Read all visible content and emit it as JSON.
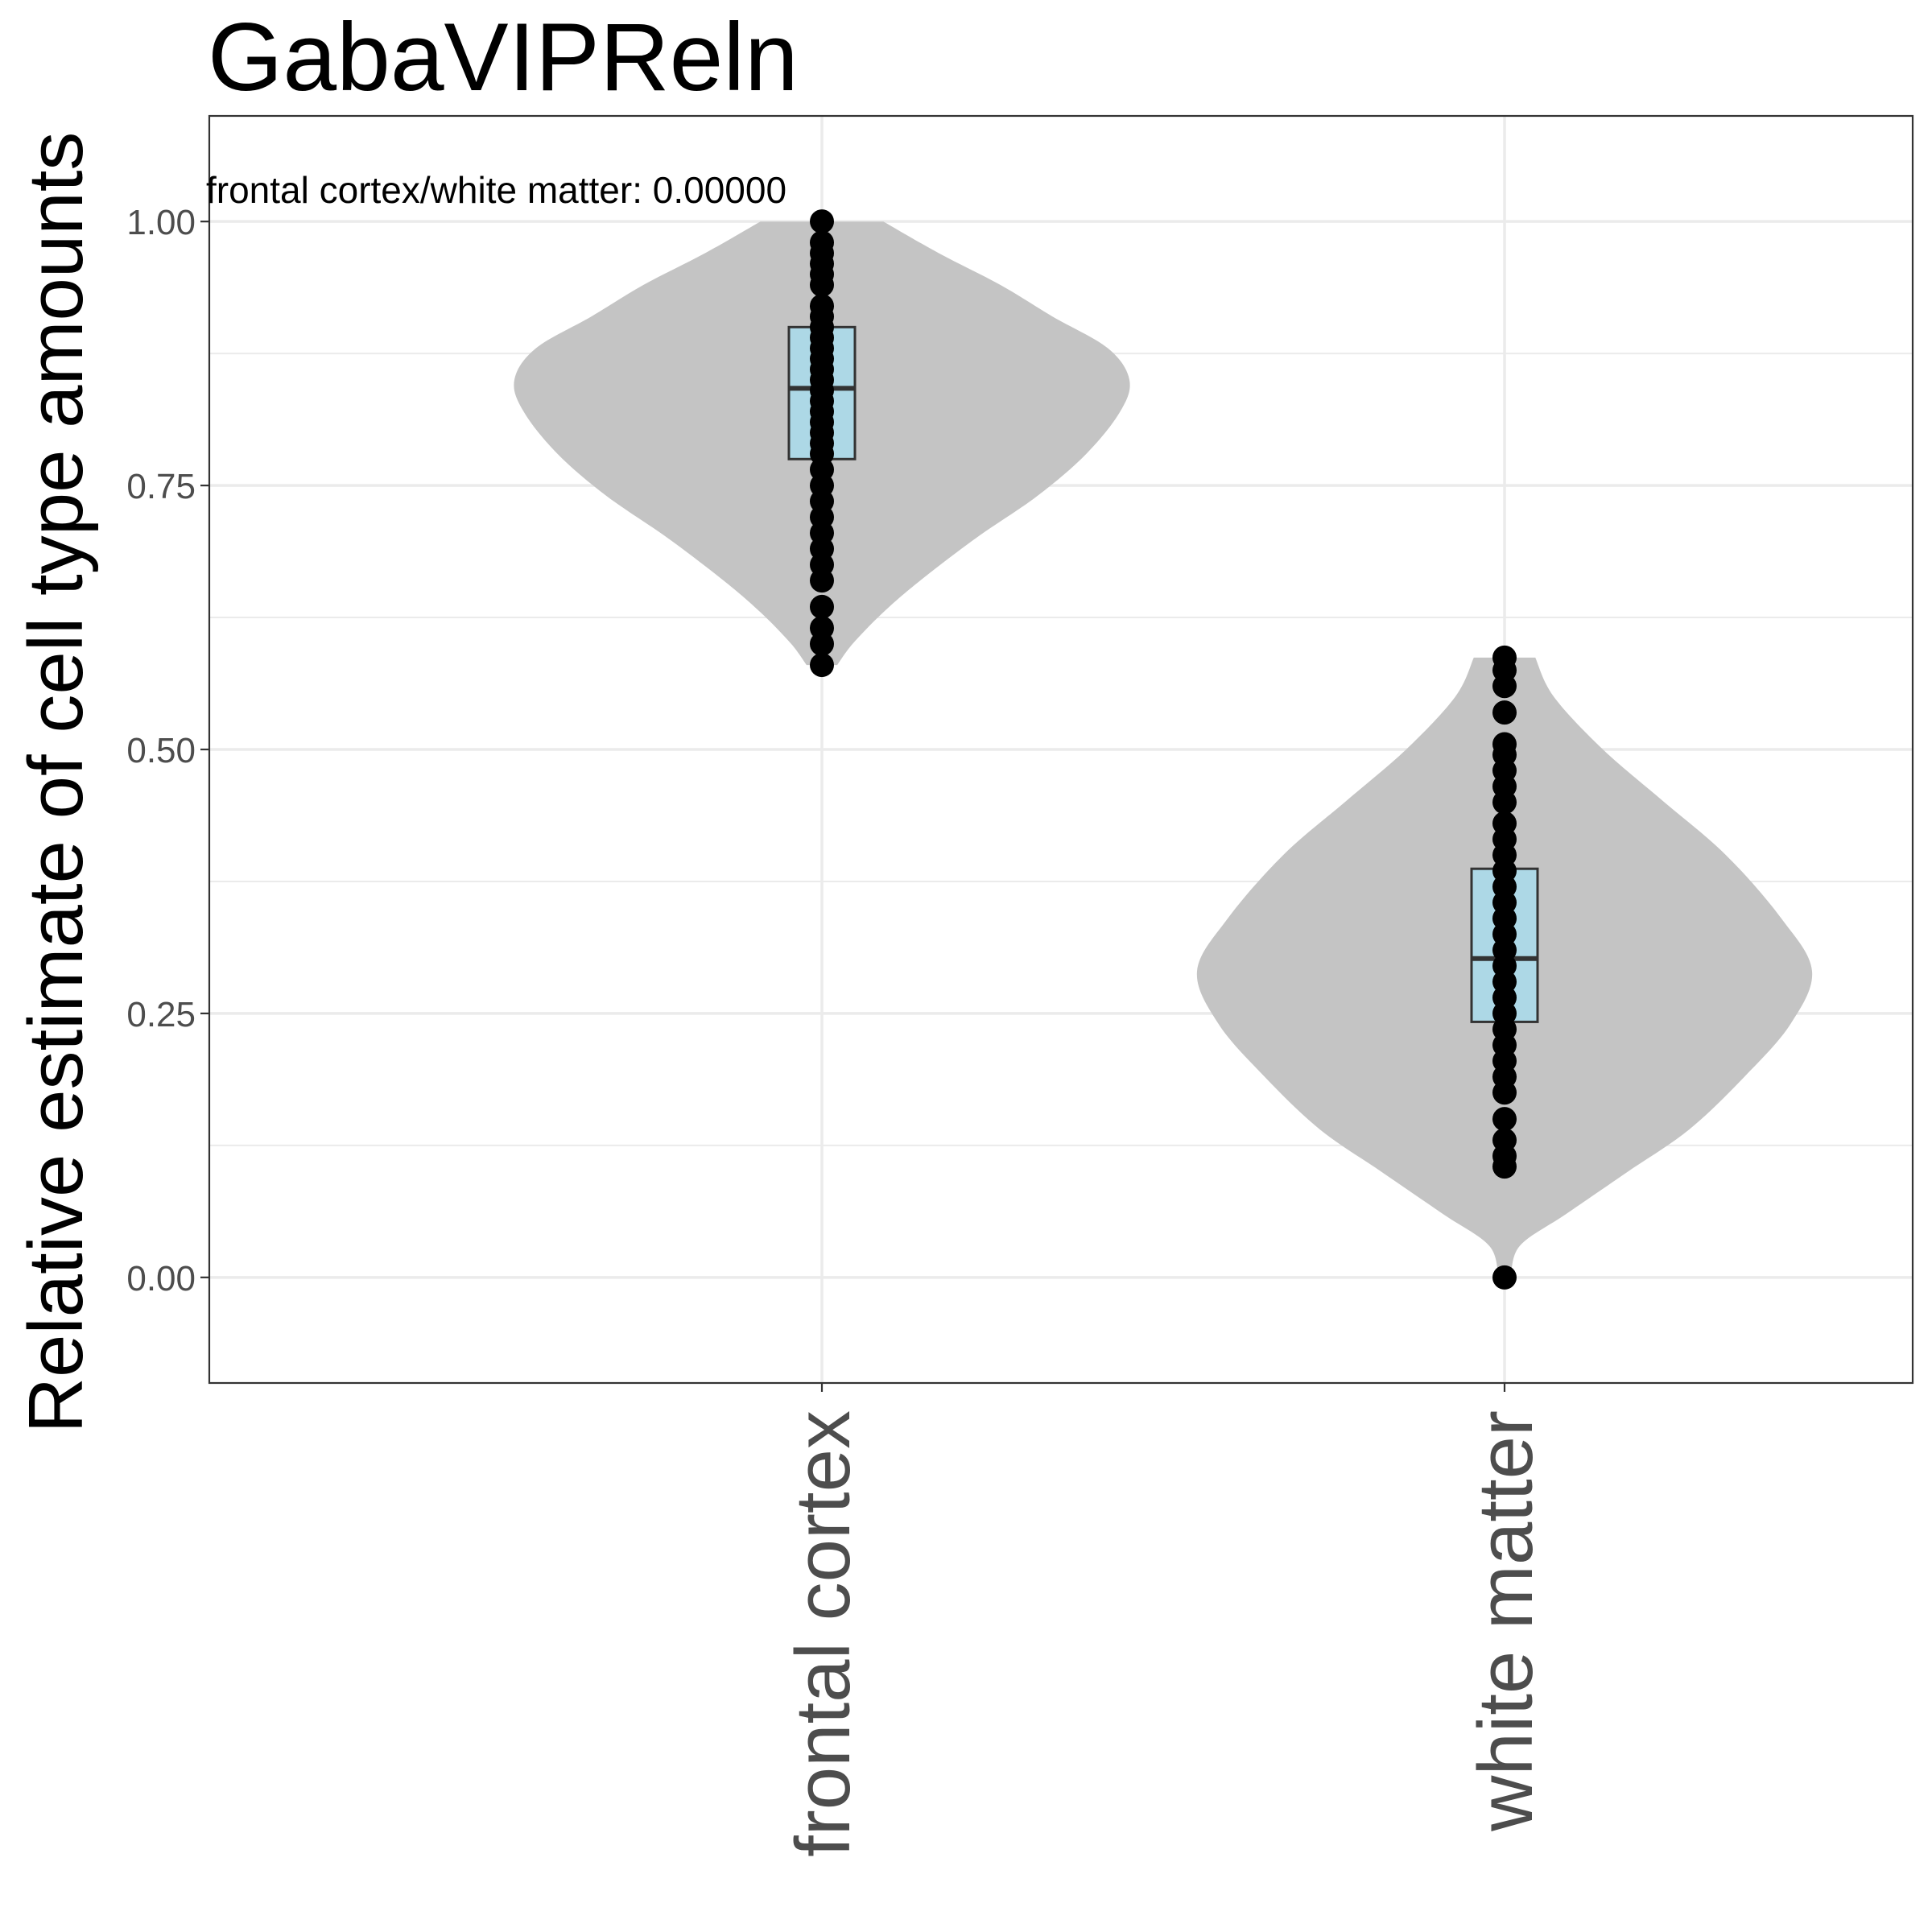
{
  "chart_data": {
    "type": "violin",
    "title": "GabaVIPReln",
    "xlabel": "",
    "ylabel": "Relative estimate of cell type amounts",
    "ylim": [
      -0.1,
      1.1
    ],
    "y_ticks": [
      "0.00",
      "0.25",
      "0.50",
      "0.75",
      "1.00"
    ],
    "grid": true,
    "categories": [
      "frontal cortex",
      "white matter"
    ],
    "annotation": "frontal cortex/white matter: 0.00000",
    "colors": {
      "violin_fill": "#c4c4c4",
      "box_fill": "#add8e6",
      "box_stroke": "#333333",
      "point": "#000000",
      "grid": "#ebebeb",
      "panel_border": "#333333"
    },
    "groups": [
      {
        "name": "frontal cortex",
        "box": {
          "q1": 0.775,
          "median": 0.842,
          "q3": 0.9
        },
        "violin": {
          "y": [
            0.58,
            0.6,
            0.63,
            0.66,
            0.7,
            0.74,
            0.78,
            0.82,
            0.85,
            0.88,
            0.91,
            0.94,
            0.97,
            1.0
          ],
          "halfwidth": [
            0.05,
            0.1,
            0.2,
            0.32,
            0.5,
            0.7,
            0.86,
            0.97,
            1.0,
            0.93,
            0.75,
            0.58,
            0.38,
            0.2
          ]
        },
        "points": [
          0.58,
          0.6,
          0.615,
          0.635,
          0.66,
          0.675,
          0.69,
          0.705,
          0.72,
          0.735,
          0.75,
          0.765,
          0.78,
          0.79,
          0.8,
          0.81,
          0.82,
          0.83,
          0.84,
          0.85,
          0.86,
          0.87,
          0.88,
          0.89,
          0.9,
          0.91,
          0.92,
          0.94,
          0.95,
          0.96,
          0.97,
          0.98,
          1.0
        ]
      },
      {
        "name": "white matter",
        "box": {
          "q1": 0.242,
          "median": 0.302,
          "q3": 0.387
        },
        "violin": {
          "y": [
            0.0,
            0.03,
            0.06,
            0.1,
            0.14,
            0.19,
            0.24,
            0.29,
            0.34,
            0.4,
            0.45,
            0.5,
            0.55,
            0.587
          ],
          "halfwidth": [
            0.02,
            0.05,
            0.2,
            0.4,
            0.6,
            0.78,
            0.93,
            1.0,
            0.9,
            0.72,
            0.52,
            0.32,
            0.16,
            0.1
          ]
        },
        "points": [
          0.0,
          0.105,
          0.115,
          0.13,
          0.15,
          0.175,
          0.19,
          0.205,
          0.22,
          0.235,
          0.25,
          0.265,
          0.28,
          0.295,
          0.31,
          0.325,
          0.34,
          0.355,
          0.37,
          0.385,
          0.4,
          0.415,
          0.43,
          0.45,
          0.465,
          0.48,
          0.495,
          0.505,
          0.535,
          0.56,
          0.575,
          0.587
        ]
      }
    ]
  }
}
